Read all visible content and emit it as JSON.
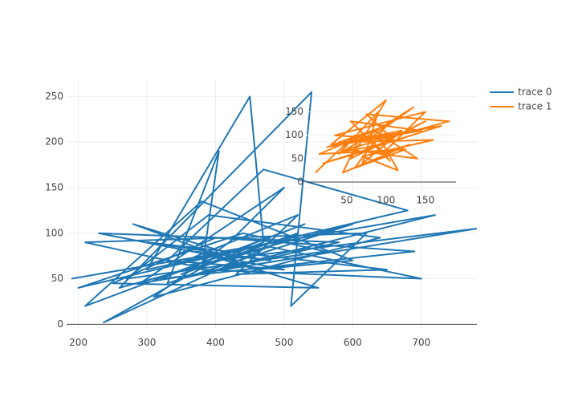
{
  "chart_data": [
    {
      "type": "line",
      "x": [
        190,
        420,
        300,
        450,
        470,
        350,
        520,
        237,
        400,
        600,
        330,
        405,
        380,
        700,
        480,
        260,
        540,
        510,
        620,
        210,
        360,
        450,
        780,
        290,
        500,
        420,
        310,
        640,
        390,
        270,
        560,
        440,
        200,
        680,
        470,
        330,
        500,
        230,
        580,
        350,
        720,
        410,
        280,
        460,
        600,
        380,
        210,
        530,
        320,
        690,
        400,
        250,
        550,
        370,
        480,
        300,
        650,
        430,
        520,
        340,
        460
      ],
      "series": [
        {
          "name": "trace 0",
          "color": "#1f77b4",
          "values": [
            50,
            80,
            60,
            250,
            90,
            55,
            100,
            2,
            70,
            110,
            45,
            190,
            60,
            50,
            85,
            40,
            255,
            20,
            100,
            90,
            65,
            75,
            105,
            45,
            150,
            90,
            30,
            95,
            120,
            50,
            80,
            100,
            40,
            125,
            170,
            70,
            60,
            100,
            90,
            50,
            120,
            80,
            110,
            60,
            70,
            135,
            20,
            110,
            50,
            80,
            95,
            45,
            40,
            80,
            70,
            90,
            60,
            55,
            120,
            65,
            85
          ]
        }
      ],
      "xlim": [
        183,
        781
      ],
      "ylim": [
        -5,
        268
      ],
      "xticks": [
        200,
        300,
        400,
        500,
        600,
        700
      ],
      "yticks": [
        0,
        50,
        100,
        150,
        200,
        250
      ],
      "grid": true
    },
    {
      "type": "line",
      "x": [
        10,
        60,
        40,
        90,
        70,
        120,
        30,
        100,
        55,
        150,
        80,
        20,
        170,
        65,
        45,
        130,
        95,
        150,
        35,
        110,
        75,
        180,
        50,
        140,
        85,
        15,
        125,
        60,
        100,
        40,
        160,
        70,
        115,
        90,
        25,
        145,
        55,
        105,
        80,
        135,
        45,
        95
      ],
      "series": [
        {
          "name": "trace 1",
          "color": "#ff7f0e",
          "values": [
            20,
            100,
            60,
            150,
            40,
            110,
            80,
            175,
            50,
            130,
            70,
            40,
            120,
            90,
            20,
            80,
            60,
            150,
            100,
            90,
            145,
            130,
            70,
            50,
            110,
            60,
            70,
            30,
            120,
            85,
            90,
            55,
            25,
            100,
            75,
            110,
            130,
            45,
            95,
            160,
            65,
            80
          ]
        }
      ],
      "xlim": [
        -1,
        189
      ],
      "ylim": [
        0,
        192
      ],
      "xticks": [
        50,
        100,
        150
      ],
      "yticks": [
        0,
        50,
        100,
        150
      ],
      "grid": true
    }
  ]
}
